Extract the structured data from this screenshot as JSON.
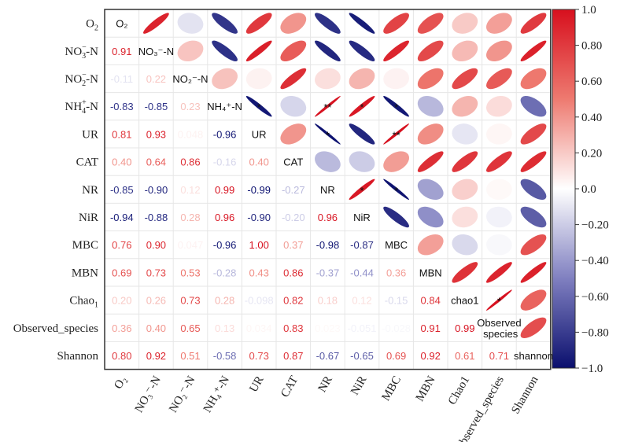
{
  "chart_data": {
    "type": "heatmap",
    "subtype": "correlation-matrix (upper: ellipses, lower: numbers)",
    "variables": [
      "O2",
      "NO3-N",
      "NO2-N",
      "NH4-N",
      "UR",
      "CAT",
      "NR",
      "NiR",
      "MBC",
      "MBN",
      "Chao1",
      "Observed_species",
      "Shannon"
    ],
    "axis_labels": [
      "O₂",
      "NO₃⁻-N",
      "NO₂⁻-N",
      "NH₄⁺-N",
      "UR",
      "CAT",
      "NR",
      "NiR",
      "MBC",
      "MBN",
      "Chao1",
      "Observed_species",
      "Shannon"
    ],
    "diagonal_labels": [
      "O₂",
      "NO₃⁻-N",
      "NO₂⁻-N",
      "NH₄⁺-N",
      "UR",
      "CAT",
      "NR",
      "NiR",
      "MBC",
      "MBN",
      "chao1",
      "Observed species",
      "shannon"
    ],
    "lower_triangle": [
      [],
      [
        0.91
      ],
      [
        -0.11,
        0.22
      ],
      [
        -0.83,
        -0.85,
        0.23
      ],
      [
        0.81,
        0.93,
        0.048,
        -0.96
      ],
      [
        0.4,
        0.64,
        0.86,
        -0.16,
        0.4
      ],
      [
        -0.85,
        -0.9,
        0.12,
        0.99,
        -0.99,
        -0.27
      ],
      [
        -0.94,
        -0.88,
        0.28,
        0.96,
        -0.9,
        -0.2,
        0.96
      ],
      [
        0.76,
        0.9,
        0.047,
        -0.96,
        1.0,
        0.37,
        -0.98,
        -0.87
      ],
      [
        0.69,
        0.73,
        0.53,
        -0.28,
        0.43,
        0.86,
        -0.37,
        -0.44,
        0.36
      ],
      [
        0.2,
        0.26,
        0.73,
        0.28,
        -0.098,
        0.82,
        0.18,
        0.12,
        -0.15,
        0.84
      ],
      [
        0.36,
        0.4,
        0.65,
        0.13,
        0.034,
        0.83,
        0.023,
        -0.051,
        -0.028,
        0.91,
        0.99
      ],
      [
        0.8,
        0.92,
        0.51,
        -0.58,
        0.73,
        0.87,
        -0.67,
        -0.65,
        0.69,
        0.92,
        0.61,
        0.71
      ]
    ],
    "significance": [
      {
        "row": 3,
        "col": 4,
        "mark": "*"
      },
      {
        "row": 3,
        "col": 6,
        "mark": "**"
      },
      {
        "row": 3,
        "col": 7,
        "mark": "*"
      },
      {
        "row": 3,
        "col": 8,
        "mark": "*"
      },
      {
        "row": 4,
        "col": 6,
        "mark": "*"
      },
      {
        "row": 4,
        "col": 8,
        "mark": "**"
      },
      {
        "row": 6,
        "col": 7,
        "mark": "*"
      },
      {
        "row": 6,
        "col": 8,
        "mark": "*"
      },
      {
        "row": 10,
        "col": 11,
        "mark": "*"
      }
    ],
    "colorbar": {
      "range": [
        -1.0,
        1.0
      ],
      "ticks": [
        1.0,
        0.8,
        0.6,
        0.4,
        0.2,
        0.0,
        -0.2,
        -0.4,
        -0.6,
        -0.8,
        -1.0
      ],
      "tick_labels": [
        "1.0",
        "0.80",
        "0.60",
        "0.40",
        "0.20",
        "0.0",
        "−0.20",
        "−0.40",
        "−0.60",
        "−0.80",
        "−1.0"
      ],
      "colors": {
        "negative": "#0a0f6e",
        "mid_negative": "#8080c0",
        "zero": "#ffffff",
        "mid_positive": "#ee7a70",
        "positive": "#d7101e"
      }
    }
  }
}
